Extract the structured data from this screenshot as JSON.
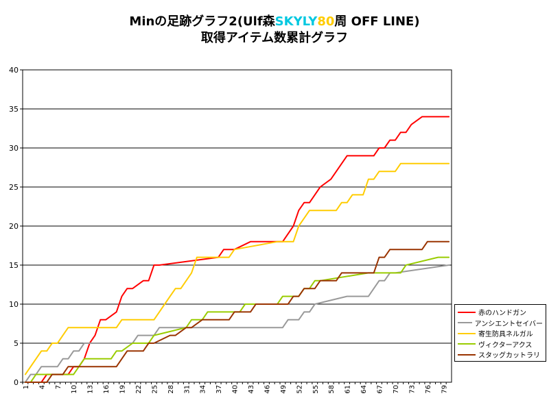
{
  "title": {
    "part1": "Minの足跡グラフ2(Ulf森",
    "part2": "SKYLY",
    "part3": "80",
    "part4": "周 OFF LINE)",
    "line2": "取得アイテム数累計グラフ"
  },
  "chart_data": {
    "type": "line",
    "title": "Minの足跡グラフ2(Ulf森SKYLY80周 OFF LINE) 取得アイテム数累計グラフ",
    "xlabel": "",
    "ylabel": "",
    "ylim": [
      0,
      40
    ],
    "yticks": [
      0,
      5,
      10,
      15,
      20,
      25,
      30,
      35,
      40
    ],
    "xlim": [
      1,
      80
    ],
    "xticks": [
      1,
      4,
      7,
      10,
      13,
      16,
      19,
      22,
      25,
      28,
      31,
      34,
      37,
      40,
      43,
      46,
      49,
      52,
      55,
      58,
      61,
      64,
      67,
      70,
      73,
      76,
      79
    ],
    "grid": "horizontal",
    "legend_position": "right",
    "series": [
      {
        "name": "赤のハンドガン",
        "color": "#ff0000",
        "x": [
          1,
          3,
          4,
          5,
          9,
          10,
          11,
          12,
          13,
          14,
          15,
          16,
          18,
          19,
          20,
          21,
          23,
          24,
          25,
          26,
          37,
          38,
          39,
          40,
          43,
          44,
          49,
          51,
          52,
          53,
          54,
          55,
          56,
          58,
          61,
          66,
          67,
          68,
          69,
          70,
          71,
          72,
          73,
          75,
          80
        ],
        "y": [
          0,
          0,
          0,
          1,
          1,
          2,
          2,
          3,
          5,
          6,
          8,
          8,
          9,
          11,
          12,
          12,
          13,
          13,
          15,
          15,
          16,
          17,
          17,
          17,
          18,
          18,
          18,
          20,
          22,
          23,
          23,
          24,
          25,
          26,
          29,
          29,
          30,
          30,
          31,
          31,
          32,
          32,
          33,
          34,
          34
        ]
      },
      {
        "name": "アンシエントセイバー",
        "color": "#999999",
        "x": [
          1,
          2,
          3,
          4,
          7,
          8,
          9,
          10,
          11,
          12,
          13,
          21,
          22,
          25,
          26,
          49,
          50,
          52,
          53,
          54,
          55,
          61,
          65,
          66,
          67,
          68,
          69,
          70,
          80
        ],
        "y": [
          0,
          1,
          1,
          2,
          2,
          3,
          3,
          4,
          4,
          5,
          5,
          5,
          6,
          6,
          7,
          7,
          8,
          8,
          9,
          9,
          10,
          11,
          11,
          12,
          13,
          13,
          14,
          14,
          15
        ]
      },
      {
        "name": "寄生防具ネルガル",
        "color": "#ffcc00",
        "x": [
          1,
          2,
          3,
          4,
          5,
          6,
          7,
          8,
          9,
          18,
          19,
          25,
          26,
          27,
          28,
          29,
          30,
          31,
          32,
          33,
          39,
          40,
          48,
          51,
          52,
          53,
          54,
          59,
          60,
          61,
          62,
          64,
          65,
          66,
          67,
          70,
          71,
          80
        ],
        "y": [
          1,
          2,
          3,
          4,
          4,
          5,
          5,
          6,
          7,
          7,
          8,
          8,
          9,
          10,
          11,
          12,
          12,
          13,
          14,
          16,
          16,
          17,
          18,
          18,
          20,
          21,
          22,
          22,
          23,
          23,
          24,
          24,
          26,
          26,
          27,
          27,
          28,
          28
        ]
      },
      {
        "name": "ヴィクターアクス",
        "color": "#99cc00",
        "x": [
          1,
          2,
          3,
          4,
          5,
          10,
          11,
          12,
          16,
          17,
          18,
          19,
          21,
          24,
          25,
          31,
          32,
          34,
          35,
          41,
          42,
          48,
          49,
          52,
          53,
          54,
          55,
          56,
          65,
          66,
          71,
          72,
          78,
          80
        ],
        "y": [
          0,
          0,
          1,
          1,
          1,
          1,
          2,
          3,
          3,
          3,
          4,
          4,
          5,
          5,
          6,
          7,
          8,
          8,
          9,
          9,
          10,
          10,
          11,
          11,
          12,
          12,
          13,
          13,
          14,
          14,
          14,
          15,
          16,
          16
        ]
      },
      {
        "name": "スタッグカットラリ",
        "color": "#993300",
        "x": [
          1,
          5,
          6,
          8,
          9,
          18,
          19,
          20,
          23,
          24,
          25,
          28,
          29,
          31,
          32,
          34,
          35,
          39,
          40,
          43,
          44,
          50,
          51,
          52,
          53,
          55,
          56,
          59,
          60,
          66,
          67,
          68,
          69,
          75,
          76,
          80
        ],
        "y": [
          0,
          0,
          1,
          1,
          2,
          2,
          3,
          4,
          4,
          5,
          5,
          6,
          6,
          7,
          7,
          8,
          8,
          8,
          9,
          9,
          10,
          10,
          11,
          11,
          12,
          12,
          13,
          13,
          14,
          14,
          16,
          16,
          17,
          17,
          18,
          18
        ]
      }
    ]
  }
}
